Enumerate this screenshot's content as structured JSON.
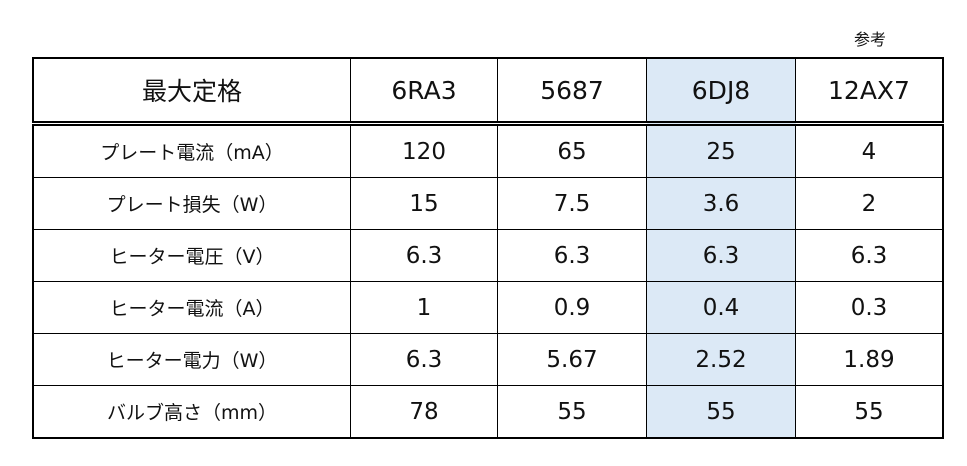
{
  "note": "参考",
  "table": {
    "header": [
      "最大定格",
      "6RA3",
      "5687",
      "6DJ8",
      "12AX7"
    ],
    "rows": [
      [
        "プレート電流（mA）",
        "120",
        "65",
        "25",
        "4"
      ],
      [
        "プレート損失（W）",
        "15",
        "7.5",
        "3.6",
        "2"
      ],
      [
        "ヒーター電圧（V）",
        "6.3",
        "6.3",
        "6.3",
        "6.3"
      ],
      [
        "ヒーター電流（A）",
        "1",
        "0.9",
        "0.4",
        "0.3"
      ],
      [
        "ヒーター電力（W）",
        "6.3",
        "5.67",
        "2.52",
        "1.89"
      ],
      [
        "バルブ高さ（mm）",
        "78",
        "55",
        "55",
        "55"
      ]
    ]
  }
}
